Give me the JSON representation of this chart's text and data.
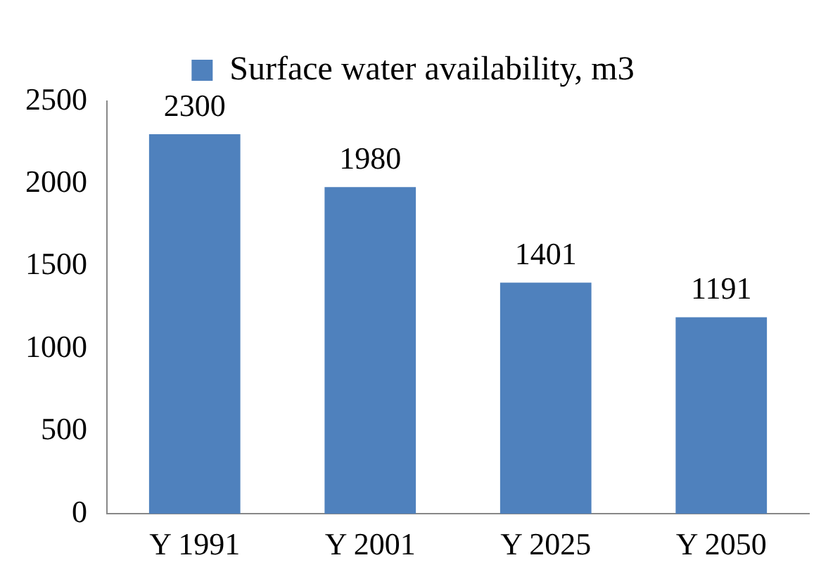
{
  "chart_data": {
    "type": "bar",
    "categories": [
      "Y 1991",
      "Y 2001",
      "Y 2025",
      "Y 2050"
    ],
    "series": [
      {
        "name": "Surface water availability, m3",
        "color": "#4f81bd",
        "values": [
          2300,
          1980,
          1401,
          1191
        ]
      }
    ],
    "ylim": [
      0,
      2500
    ],
    "yticks": [
      0,
      500,
      1000,
      1500,
      2000,
      2500
    ],
    "grid": false,
    "legend": "top",
    "data_labels": true
  }
}
